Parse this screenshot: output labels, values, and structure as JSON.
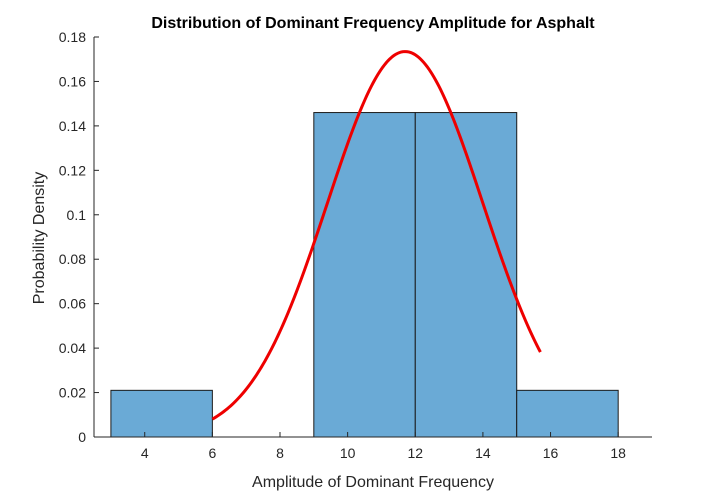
{
  "chart_data": {
    "type": "bar",
    "title": "Distribution of Dominant Frequency Amplitude for Asphalt",
    "xlabel": "Amplitude of Dominant Frequency",
    "ylabel": "Probability Density",
    "xlim": [
      2.5,
      19
    ],
    "ylim": [
      0,
      0.18
    ],
    "xticks": [
      4,
      6,
      8,
      10,
      12,
      14,
      16,
      18
    ],
    "yticks": [
      0,
      0.02,
      0.04,
      0.06,
      0.08,
      0.1,
      0.12,
      0.14,
      0.16,
      0.18
    ],
    "bins": [
      {
        "start": 3,
        "end": 6,
        "value": 0.021
      },
      {
        "start": 9,
        "end": 12,
        "value": 0.146
      },
      {
        "start": 12,
        "end": 15,
        "value": 0.146
      },
      {
        "start": 15,
        "end": 18,
        "value": 0.021
      }
    ],
    "curve": {
      "type": "normal-pdf",
      "mean": 11.7,
      "std": 2.3,
      "x_range": [
        6,
        15.7
      ]
    },
    "colors": {
      "bar_fill": "#6aaad6",
      "bar_edge": "#1a1a1a",
      "curve": "#ee0000",
      "axis": "#262626"
    },
    "grid": false
  }
}
